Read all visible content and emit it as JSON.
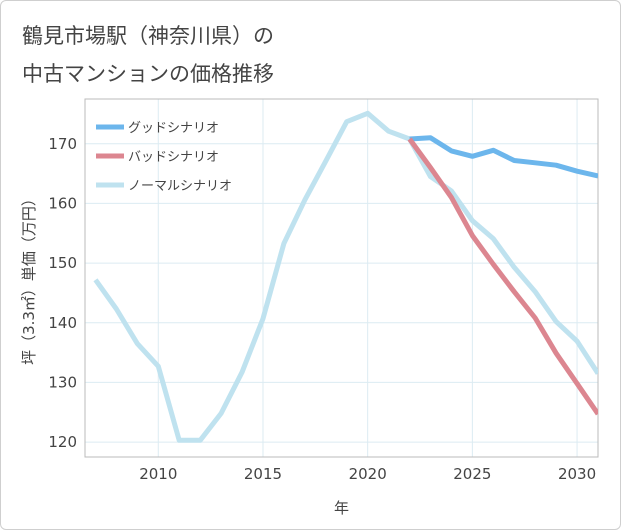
{
  "title_lines": [
    "鶴見市場駅（神奈川県）の",
    "中古マンションの価格推移"
  ],
  "colors": {
    "good": "#6cb6ec",
    "bad": "#dc8690",
    "normal": "#bfe2ef",
    "grid": "#dcebf2",
    "axis_text": "#444444",
    "frame": "#bbbbbb"
  },
  "chart_data": {
    "type": "line",
    "title": "鶴見市場駅（神奈川県）の中古マンションの価格推移",
    "xlabel": "年",
    "ylabel": "坪（3.3㎡）単価（万円）",
    "xlim": [
      2006.5,
      2031
    ],
    "ylim": [
      117.5,
      177.5
    ],
    "x_ticks": [
      2010,
      2015,
      2020,
      2025,
      2030
    ],
    "y_ticks": [
      120,
      130,
      140,
      150,
      160,
      170
    ],
    "legend_position": "top-left",
    "series": [
      {
        "name": "グッドシナリオ",
        "color_key": "good",
        "x": [
          2022,
          2023,
          2024,
          2025,
          2026,
          2027,
          2028,
          2029,
          2030,
          2031
        ],
        "y": [
          170.8,
          171.0,
          168.8,
          167.9,
          168.9,
          167.2,
          166.8,
          166.4,
          165.4,
          164.6
        ]
      },
      {
        "name": "バッドシナリオ",
        "color_key": "bad",
        "x": [
          2022,
          2023,
          2024,
          2025,
          2026,
          2027,
          2028,
          2029,
          2030,
          2031
        ],
        "y": [
          170.8,
          166.0,
          161.0,
          154.6,
          149.8,
          145.2,
          140.8,
          134.9,
          129.8,
          124.7
        ]
      },
      {
        "name": "ノーマルシナリオ",
        "color_key": "normal",
        "x": [
          2007,
          2008,
          2009,
          2010,
          2011,
          2012,
          2013,
          2014,
          2015,
          2016,
          2017,
          2018,
          2019,
          2020,
          2021,
          2022,
          2023,
          2024,
          2025,
          2026,
          2027,
          2028,
          2029,
          2030,
          2031
        ],
        "y": [
          147.2,
          142.3,
          136.5,
          132.7,
          120.3,
          120.3,
          124.8,
          131.7,
          140.7,
          153.3,
          160.6,
          167.1,
          173.7,
          175.1,
          172.1,
          170.8,
          164.5,
          162.1,
          157.1,
          154.1,
          149.3,
          145.2,
          140.2,
          136.9,
          131.5
        ]
      }
    ]
  }
}
